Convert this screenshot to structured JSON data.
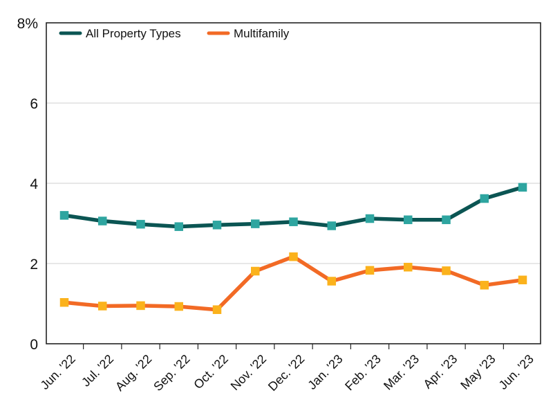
{
  "chart_data": {
    "type": "line",
    "categories": [
      "Jun. '22",
      "Jul. '22",
      "Aug. '22",
      "Sep. '22",
      "Oct. '22",
      "Nov. '22",
      "Dec. '22",
      "Jan. '23",
      "Feb. '23",
      "Mar. '23",
      "Apr. '23",
      "May '23",
      "Jun. '23"
    ],
    "series": [
      {
        "name": "All Property Types",
        "values": [
          3.2,
          3.06,
          2.98,
          2.92,
          2.96,
          2.99,
          3.04,
          2.94,
          3.12,
          3.09,
          3.09,
          3.62,
          3.9
        ],
        "line_color": "#0b5553",
        "marker_color": "#2ea5a0"
      },
      {
        "name": "Multifamily",
        "values": [
          1.03,
          0.94,
          0.95,
          0.93,
          0.85,
          1.81,
          2.17,
          1.56,
          1.83,
          1.91,
          1.82,
          1.46,
          1.59
        ],
        "line_color": "#f26a25",
        "marker_color": "#fbb21c"
      }
    ],
    "yticks": [
      "0",
      "2",
      "4",
      "6",
      "8%"
    ],
    "ylim": [
      0,
      8
    ],
    "grid": true,
    "legend": "top-left"
  }
}
